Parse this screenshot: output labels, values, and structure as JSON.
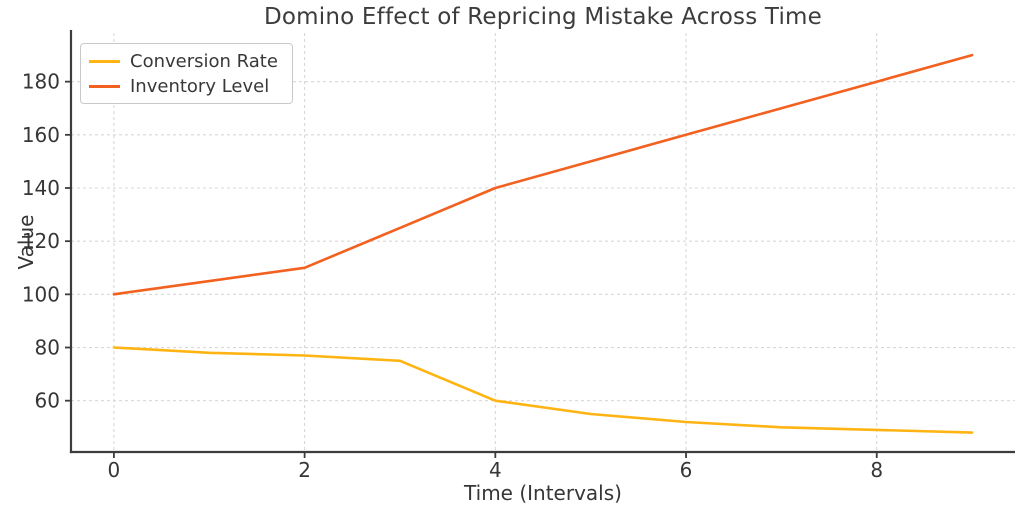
{
  "chart_data": {
    "type": "line",
    "title": "Domino Effect of Repricing Mistake Across Time",
    "xlabel": "Time (Intervals)",
    "ylabel": "Value",
    "x": [
      0,
      1,
      2,
      3,
      4,
      5,
      6,
      7,
      8,
      9
    ],
    "series": [
      {
        "name": "Conversion Rate",
        "color": "#FFB414",
        "values": [
          80,
          78,
          77,
          75,
          60,
          55,
          52,
          50,
          49,
          48
        ]
      },
      {
        "name": "Inventory Level",
        "color": "#F2611F",
        "values": [
          100,
          105,
          110,
          125,
          140,
          150,
          160,
          170,
          180,
          190
        ]
      }
    ],
    "xticks": [
      0,
      2,
      4,
      6,
      8
    ],
    "yticks": [
      60,
      80,
      100,
      120,
      140,
      160,
      180
    ],
    "xlim": [
      -0.45,
      9.45
    ],
    "ylim": [
      40.7,
      198.3
    ],
    "grid": true,
    "grid_style": "dashed",
    "legend_position": "upper-left",
    "line_width": 2.6
  },
  "style_colors": {
    "grid": "#d7d7d7",
    "spine": "#3d3d3d",
    "tick_text": "#363636",
    "title_text": "#3c3c3c",
    "background": "#ffffff"
  }
}
